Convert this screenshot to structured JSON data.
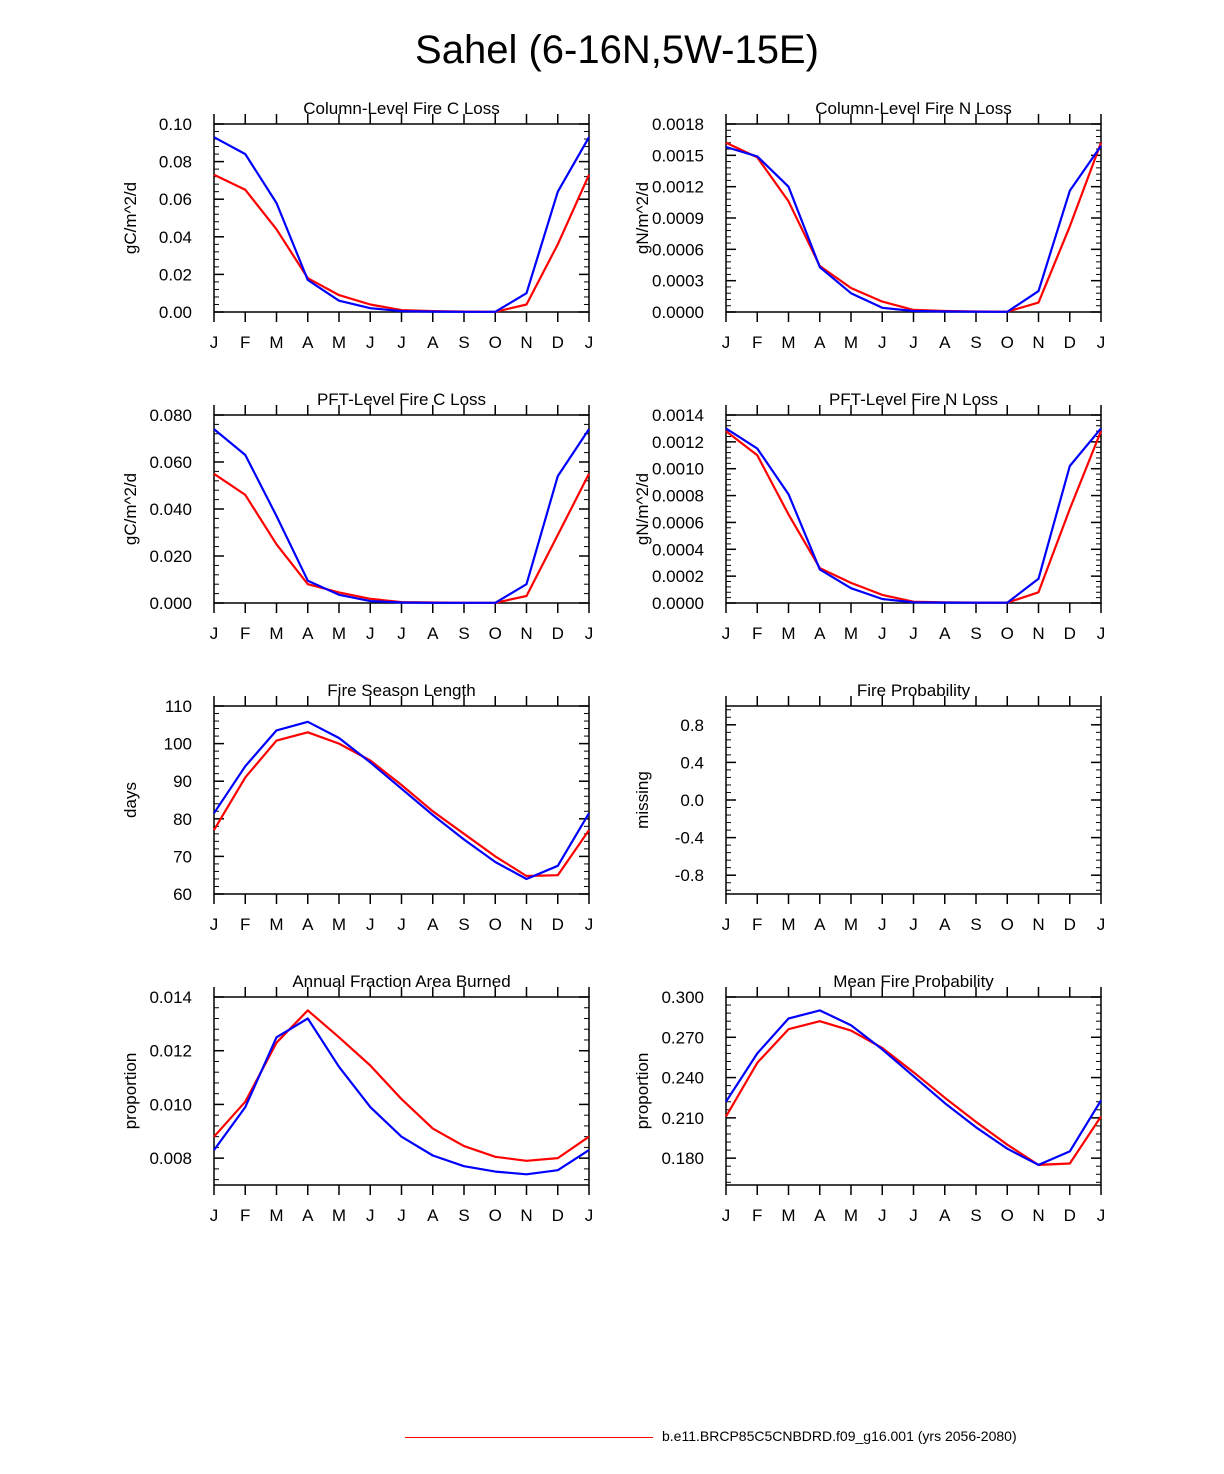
{
  "figure_title": "Sahel (6-16N,5W-15E)",
  "colors": {
    "series_a": "#ff0000",
    "series_b": "#0000ff",
    "axis": "#000000"
  },
  "legend": {
    "label": "b.e11.BRCP85C5CNBDRD.f09_g16.001 (yrs 2056-2080)",
    "color": "#ff0000"
  },
  "chart_data": [
    {
      "id": "column-c-loss",
      "type": "line",
      "title": "Column-Level Fire C Loss",
      "ylabel": "gC/m^2/d",
      "ylim": [
        0,
        0.1
      ],
      "yticks": [
        0,
        0.02,
        0.04,
        0.06,
        0.08,
        0.1
      ],
      "yticklabels": [
        "0.00",
        "0.02",
        "0.04",
        "0.06",
        "0.08",
        "0.10"
      ],
      "categories": [
        "J",
        "F",
        "M",
        "A",
        "M",
        "J",
        "J",
        "A",
        "S",
        "O",
        "N",
        "D",
        "J"
      ],
      "series": [
        {
          "name": "red",
          "color": "#ff0000",
          "values": [
            0.073,
            0.065,
            0.044,
            0.018,
            0.009,
            0.004,
            0.001,
            0.0005,
            0.0002,
            0.0001,
            0.004,
            0.036,
            0.073
          ]
        },
        {
          "name": "blue",
          "color": "#0000ff",
          "values": [
            0.093,
            0.084,
            0.058,
            0.017,
            0.006,
            0.002,
            0.0005,
            0.0002,
            0.0001,
            0.0001,
            0.01,
            0.064,
            0.093
          ]
        }
      ]
    },
    {
      "id": "column-n-loss",
      "type": "line",
      "title": "Column-Level Fire N Loss",
      "ylabel": "gN/m^2/d",
      "ylim": [
        0,
        0.0018
      ],
      "yticks": [
        0,
        0.0003,
        0.0006,
        0.0009,
        0.0012,
        0.0015,
        0.0018
      ],
      "yticklabels": [
        "0.0000",
        "0.0003",
        "0.0006",
        "0.0009",
        "0.0012",
        "0.0015",
        "0.0018"
      ],
      "categories": [
        "J",
        "F",
        "M",
        "A",
        "M",
        "J",
        "J",
        "A",
        "S",
        "O",
        "N",
        "D",
        "J"
      ],
      "series": [
        {
          "name": "red",
          "color": "#ff0000",
          "values": [
            0.00162,
            0.00148,
            0.00106,
            0.00044,
            0.00023,
            0.0001,
            2e-05,
            1e-05,
            5e-06,
            3e-06,
            9e-05,
            0.00082,
            0.00162
          ]
        },
        {
          "name": "blue",
          "color": "#0000ff",
          "values": [
            0.00158,
            0.00149,
            0.0012,
            0.00043,
            0.00018,
            4e-05,
            1e-05,
            5e-06,
            3e-06,
            2e-06,
            0.0002,
            0.00116,
            0.00159
          ]
        }
      ]
    },
    {
      "id": "pft-c-loss",
      "type": "line",
      "title": "PFT-Level Fire C Loss",
      "ylabel": "gC/m^2/d",
      "ylim": [
        0,
        0.08
      ],
      "yticks": [
        0,
        0.02,
        0.04,
        0.06,
        0.08
      ],
      "yticklabels": [
        "0.000",
        "0.020",
        "0.040",
        "0.060",
        "0.080"
      ],
      "categories": [
        "J",
        "F",
        "M",
        "A",
        "M",
        "J",
        "J",
        "A",
        "S",
        "O",
        "N",
        "D",
        "J"
      ],
      "series": [
        {
          "name": "red",
          "color": "#ff0000",
          "values": [
            0.055,
            0.046,
            0.025,
            0.008,
            0.0045,
            0.0018,
            0.0004,
            0.0002,
            0.0001,
            0.0001,
            0.003,
            0.029,
            0.055
          ]
        },
        {
          "name": "blue",
          "color": "#0000ff",
          "values": [
            0.074,
            0.063,
            0.037,
            0.0095,
            0.0035,
            0.0008,
            0.0002,
            0.0001,
            0.0001,
            0.0001,
            0.008,
            0.054,
            0.074
          ]
        }
      ]
    },
    {
      "id": "pft-n-loss",
      "type": "line",
      "title": "PFT-Level Fire N Loss",
      "ylabel": "gN/m^2/d",
      "ylim": [
        0,
        0.0014
      ],
      "yticks": [
        0,
        0.0002,
        0.0004,
        0.0006,
        0.0008,
        0.001,
        0.0012,
        0.0014
      ],
      "yticklabels": [
        "0.0000",
        "0.0002",
        "0.0004",
        "0.0006",
        "0.0008",
        "0.0010",
        "0.0012",
        "0.0014"
      ],
      "categories": [
        "J",
        "F",
        "M",
        "A",
        "M",
        "J",
        "J",
        "A",
        "S",
        "O",
        "N",
        "D",
        "J"
      ],
      "series": [
        {
          "name": "red",
          "color": "#ff0000",
          "values": [
            0.00128,
            0.0011,
            0.00066,
            0.00026,
            0.00015,
            6e-05,
            1e-05,
            5e-06,
            3e-06,
            2e-06,
            8e-05,
            0.0007,
            0.00128
          ]
        },
        {
          "name": "blue",
          "color": "#0000ff",
          "values": [
            0.0013,
            0.00115,
            0.00081,
            0.00025,
            0.00011,
            3e-05,
            5e-06,
            3e-06,
            2e-06,
            2e-06,
            0.00018,
            0.00102,
            0.0013
          ]
        }
      ]
    },
    {
      "id": "fire-season-length",
      "type": "line",
      "title": "Fire Season Length",
      "ylabel": "days",
      "ylim": [
        60,
        110
      ],
      "yticks": [
        60,
        70,
        80,
        90,
        100,
        110
      ],
      "yticklabels": [
        "60",
        "70",
        "80",
        "90",
        "100",
        "110"
      ],
      "categories": [
        "J",
        "F",
        "M",
        "A",
        "M",
        "J",
        "J",
        "A",
        "S",
        "O",
        "N",
        "D",
        "J"
      ],
      "series": [
        {
          "name": "red",
          "color": "#ff0000",
          "values": [
            77,
            91,
            100.8,
            103,
            100,
            95.5,
            89,
            82,
            76,
            70,
            64.8,
            65,
            77
          ]
        },
        {
          "name": "blue",
          "color": "#0000ff",
          "values": [
            81.5,
            94,
            103.5,
            105.8,
            101.5,
            95,
            88,
            81,
            74.5,
            68.5,
            64,
            67.5,
            81.5
          ]
        }
      ]
    },
    {
      "id": "fire-probability",
      "type": "line",
      "title": "Fire Probability",
      "ylabel": "missing",
      "ylim": [
        -1.0,
        1.0
      ],
      "yticks": [
        -0.8,
        -0.4,
        0.0,
        0.4,
        0.8
      ],
      "yticklabels": [
        "-0.8",
        "-0.4",
        "0.0",
        "0.4",
        "0.8"
      ],
      "categories": [
        "J",
        "F",
        "M",
        "A",
        "M",
        "J",
        "J",
        "A",
        "S",
        "O",
        "N",
        "D",
        "J"
      ],
      "series": []
    },
    {
      "id": "annual-fraction-area-burned",
      "type": "line",
      "title": "Annual Fraction Area Burned",
      "ylabel": "proportion",
      "ylim": [
        0.007,
        0.014
      ],
      "yticks": [
        0.008,
        0.01,
        0.012,
        0.014
      ],
      "yticklabels": [
        "0.008",
        "0.010",
        "0.012",
        "0.014"
      ],
      "categories": [
        "J",
        "F",
        "M",
        "A",
        "M",
        "J",
        "J",
        "A",
        "S",
        "O",
        "N",
        "D",
        "J"
      ],
      "series": [
        {
          "name": "red",
          "color": "#ff0000",
          "values": [
            0.0088,
            0.0101,
            0.0123,
            0.0135,
            0.0125,
            0.01145,
            0.0102,
            0.0091,
            0.00845,
            0.00805,
            0.0079,
            0.008,
            0.0088
          ]
        },
        {
          "name": "blue",
          "color": "#0000ff",
          "values": [
            0.0083,
            0.0099,
            0.0125,
            0.0132,
            0.0114,
            0.0099,
            0.0088,
            0.0081,
            0.0077,
            0.0075,
            0.0074,
            0.00755,
            0.0083
          ]
        }
      ]
    },
    {
      "id": "mean-fire-probability",
      "type": "line",
      "title": "Mean Fire Probability",
      "ylabel": "proportion",
      "ylim": [
        0.16,
        0.3
      ],
      "yticks": [
        0.18,
        0.21,
        0.24,
        0.27,
        0.3
      ],
      "yticklabels": [
        "0.180",
        "0.210",
        "0.240",
        "0.270",
        "0.300"
      ],
      "categories": [
        "J",
        "F",
        "M",
        "A",
        "M",
        "J",
        "J",
        "A",
        "S",
        "O",
        "N",
        "D",
        "J"
      ],
      "series": [
        {
          "name": "red",
          "color": "#ff0000",
          "values": [
            0.211,
            0.251,
            0.276,
            0.282,
            0.275,
            0.262,
            0.244,
            0.225,
            0.207,
            0.19,
            0.175,
            0.176,
            0.211
          ]
        },
        {
          "name": "blue",
          "color": "#0000ff",
          "values": [
            0.222,
            0.258,
            0.284,
            0.29,
            0.279,
            0.261,
            0.241,
            0.221,
            0.203,
            0.187,
            0.175,
            0.185,
            0.223
          ]
        }
      ]
    }
  ]
}
